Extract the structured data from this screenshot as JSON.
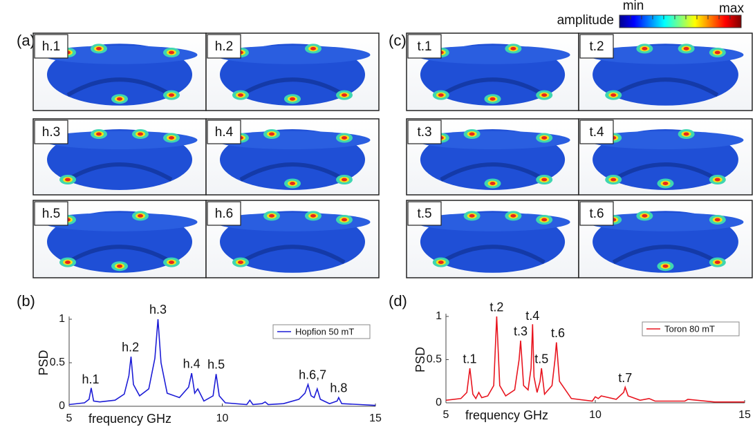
{
  "panels": [
    "(a)",
    "(b)",
    "(c)",
    "(d)"
  ],
  "colorbar": {
    "title": "amplitude",
    "min": "min",
    "max": "max"
  },
  "tiles": {
    "hopfion": [
      "h.1",
      "h.2",
      "h.3",
      "h.4",
      "h.5",
      "h.6"
    ],
    "toron": [
      "t.1",
      "t.2",
      "t.3",
      "t.4",
      "t.5",
      "t.6"
    ]
  },
  "chart_data": [
    {
      "type": "line",
      "xlabel": "frequency GHz",
      "ylabel": "PSD",
      "x": [
        5,
        5.5,
        5.65,
        5.72,
        5.8,
        6,
        6.5,
        6.8,
        6.95,
        7.02,
        7.1,
        7.3,
        7.6,
        7.8,
        7.9,
        8.0,
        8.2,
        8.6,
        8.9,
        9.0,
        9.1,
        9.2,
        9.4,
        9.7,
        9.8,
        9.9,
        10.1,
        10.8,
        10.9,
        11.0,
        11.3,
        11.4,
        11.5,
        12,
        12.5,
        12.7,
        12.8,
        12.9,
        13.0,
        13.1,
        13.2,
        13.5,
        13.75,
        13.8,
        13.9,
        14.5,
        15
      ],
      "series": [
        {
          "name": "Hopfion 50 mT",
          "color": "#1c1cd6",
          "values": [
            0.02,
            0.04,
            0.08,
            0.21,
            0.06,
            0.05,
            0.07,
            0.14,
            0.35,
            0.57,
            0.25,
            0.12,
            0.2,
            0.55,
            1.0,
            0.5,
            0.15,
            0.1,
            0.22,
            0.38,
            0.15,
            0.2,
            0.06,
            0.12,
            0.37,
            0.12,
            0.04,
            0.02,
            0.07,
            0.02,
            0.03,
            0.05,
            0.02,
            0.03,
            0.08,
            0.15,
            0.25,
            0.12,
            0.1,
            0.2,
            0.08,
            0.03,
            0.06,
            0.1,
            0.03,
            0.02,
            0.01
          ]
        }
      ],
      "xlim": [
        5,
        15
      ],
      "ylim": [
        0,
        1
      ],
      "xticks": [
        5,
        10,
        15
      ],
      "yticks": [
        0,
        0.5,
        1
      ],
      "legend": "upper right",
      "annotations": [
        {
          "text": "h.1",
          "x": 5.7,
          "y": 0.3
        },
        {
          "text": "h.2",
          "x": 7.0,
          "y": 0.67
        },
        {
          "text": "h.3",
          "x": 7.9,
          "y": 1.1
        },
        {
          "text": "h.4",
          "x": 9.0,
          "y": 0.48
        },
        {
          "text": "h.5",
          "x": 9.8,
          "y": 0.47
        },
        {
          "text": "h.6,7",
          "x": 12.95,
          "y": 0.35
        },
        {
          "text": "h.8",
          "x": 13.8,
          "y": 0.2
        }
      ]
    },
    {
      "type": "line",
      "xlabel": "frequency GHz",
      "ylabel": "PSD",
      "x": [
        5,
        5.5,
        5.7,
        5.8,
        5.9,
        6.0,
        6.1,
        6.2,
        6.4,
        6.6,
        6.7,
        6.8,
        7.0,
        7.3,
        7.45,
        7.5,
        7.6,
        7.75,
        7.85,
        7.9,
        7.95,
        8.05,
        8.15,
        8.2,
        8.3,
        8.55,
        8.65,
        8.7,
        8.8,
        9.2,
        9.9,
        10.0,
        10.1,
        10.2,
        10.7,
        10.95,
        11.0,
        11.1,
        11.5,
        11.8,
        12,
        13,
        13.1,
        14,
        15
      ],
      "series": [
        {
          "name": "Toron 80 mT",
          "color": "#e8141e",
          "values": [
            0.03,
            0.05,
            0.12,
            0.4,
            0.1,
            0.05,
            0.12,
            0.06,
            0.08,
            0.2,
            1.0,
            0.2,
            0.08,
            0.15,
            0.5,
            0.72,
            0.2,
            0.15,
            0.4,
            0.91,
            0.3,
            0.12,
            0.25,
            0.4,
            0.1,
            0.2,
            0.5,
            0.7,
            0.25,
            0.05,
            0.02,
            0.07,
            0.05,
            0.08,
            0.04,
            0.12,
            0.18,
            0.08,
            0.03,
            0.05,
            0.02,
            0.02,
            0.04,
            0.01,
            0.01
          ]
        }
      ],
      "xlim": [
        5,
        15
      ],
      "ylim": [
        0,
        1
      ],
      "xticks": [
        5,
        10,
        15
      ],
      "yticks": [
        0,
        0.5,
        1
      ],
      "legend": "upper right",
      "annotations": [
        {
          "text": "t.1",
          "x": 5.8,
          "y": 0.5
        },
        {
          "text": "t.2",
          "x": 6.7,
          "y": 1.1
        },
        {
          "text": "t.3",
          "x": 7.5,
          "y": 0.82
        },
        {
          "text": "t.4",
          "x": 7.9,
          "y": 1.0
        },
        {
          "text": "t.5",
          "x": 8.2,
          "y": 0.5
        },
        {
          "text": "t.6",
          "x": 8.75,
          "y": 0.8
        },
        {
          "text": "t.7",
          "x": 11.0,
          "y": 0.28
        }
      ]
    }
  ]
}
